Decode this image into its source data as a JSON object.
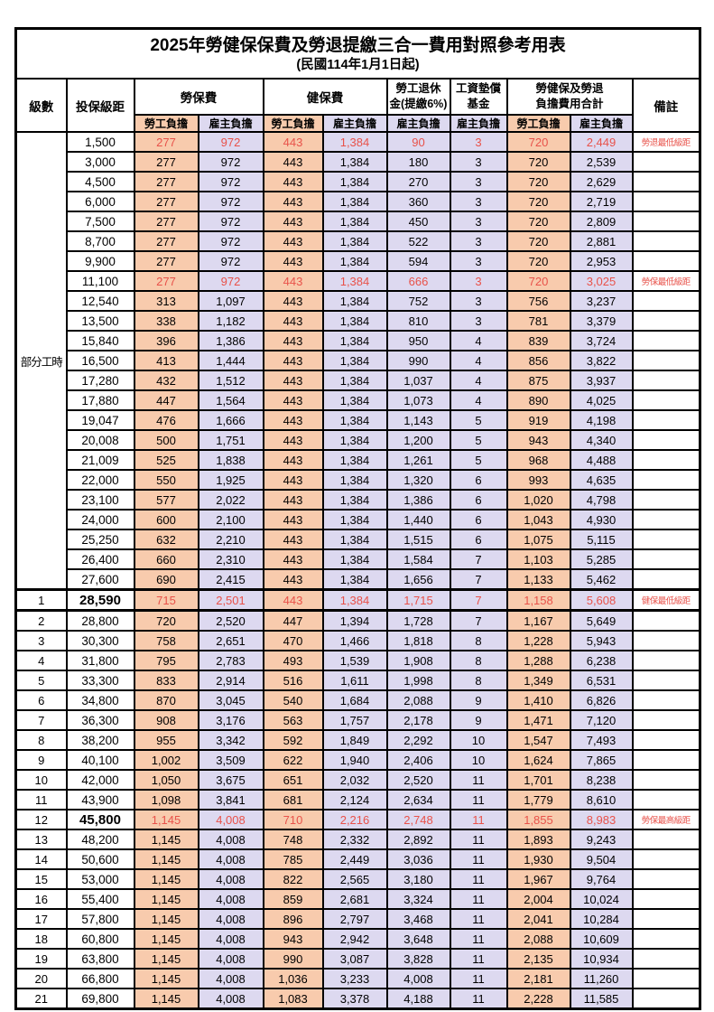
{
  "title": "2025年勞健保保費及勞退提繳三合一費用對照參考用表",
  "subtitle": "(民國114年1月1日起)",
  "columns": {
    "level": "級數",
    "bracket": "投保級距",
    "labor_group": "勞保費",
    "health_group": "健保費",
    "pension_line1": "勞工退休",
    "pension_line2": "金(提繳6%)",
    "wagefund_line1": "工資墊償",
    "wagefund_line2": "基金",
    "total_line1": "勞健保及勞退",
    "total_line2": "負擔費用合計",
    "remark": "備註",
    "employee_share": "勞工負擔",
    "employer_share": "雇主負擔"
  },
  "part_time_label": "部分工時",
  "colors": {
    "employee_bg": "#F8CBAD",
    "employer_bg": "#DDD9F0",
    "highlight_red": "#E8524A"
  },
  "rows": [
    {
      "level": "",
      "bracket": "1,500",
      "values": [
        "277",
        "972",
        "443",
        "1,384",
        "90",
        "3",
        "720",
        "2,449"
      ],
      "remark": "勞退最低級距",
      "red": true,
      "bold": false
    },
    {
      "level": "",
      "bracket": "3,000",
      "values": [
        "277",
        "972",
        "443",
        "1,384",
        "180",
        "3",
        "720",
        "2,539"
      ],
      "remark": "",
      "red": false,
      "bold": false
    },
    {
      "level": "",
      "bracket": "4,500",
      "values": [
        "277",
        "972",
        "443",
        "1,384",
        "270",
        "3",
        "720",
        "2,629"
      ],
      "remark": "",
      "red": false,
      "bold": false
    },
    {
      "level": "",
      "bracket": "6,000",
      "values": [
        "277",
        "972",
        "443",
        "1,384",
        "360",
        "3",
        "720",
        "2,719"
      ],
      "remark": "",
      "red": false,
      "bold": false
    },
    {
      "level": "",
      "bracket": "7,500",
      "values": [
        "277",
        "972",
        "443",
        "1,384",
        "450",
        "3",
        "720",
        "2,809"
      ],
      "remark": "",
      "red": false,
      "bold": false
    },
    {
      "level": "",
      "bracket": "8,700",
      "values": [
        "277",
        "972",
        "443",
        "1,384",
        "522",
        "3",
        "720",
        "2,881"
      ],
      "remark": "",
      "red": false,
      "bold": false
    },
    {
      "level": "",
      "bracket": "9,900",
      "values": [
        "277",
        "972",
        "443",
        "1,384",
        "594",
        "3",
        "720",
        "2,953"
      ],
      "remark": "",
      "red": false,
      "bold": false
    },
    {
      "level": "",
      "bracket": "11,100",
      "values": [
        "277",
        "972",
        "443",
        "1,384",
        "666",
        "3",
        "720",
        "3,025"
      ],
      "remark": "勞保最低級距",
      "red": true,
      "bold": false
    },
    {
      "level": "",
      "bracket": "12,540",
      "values": [
        "313",
        "1,097",
        "443",
        "1,384",
        "752",
        "3",
        "756",
        "3,237"
      ],
      "remark": "",
      "red": false,
      "bold": false
    },
    {
      "level": "",
      "bracket": "13,500",
      "values": [
        "338",
        "1,182",
        "443",
        "1,384",
        "810",
        "3",
        "781",
        "3,379"
      ],
      "remark": "",
      "red": false,
      "bold": false
    },
    {
      "level": "",
      "bracket": "15,840",
      "values": [
        "396",
        "1,386",
        "443",
        "1,384",
        "950",
        "4",
        "839",
        "3,724"
      ],
      "remark": "",
      "red": false,
      "bold": false
    },
    {
      "level": "",
      "bracket": "16,500",
      "values": [
        "413",
        "1,444",
        "443",
        "1,384",
        "990",
        "4",
        "856",
        "3,822"
      ],
      "remark": "",
      "red": false,
      "bold": false
    },
    {
      "level": "",
      "bracket": "17,280",
      "values": [
        "432",
        "1,512",
        "443",
        "1,384",
        "1,037",
        "4",
        "875",
        "3,937"
      ],
      "remark": "",
      "red": false,
      "bold": false
    },
    {
      "level": "",
      "bracket": "17,880",
      "values": [
        "447",
        "1,564",
        "443",
        "1,384",
        "1,073",
        "4",
        "890",
        "4,025"
      ],
      "remark": "",
      "red": false,
      "bold": false
    },
    {
      "level": "",
      "bracket": "19,047",
      "values": [
        "476",
        "1,666",
        "443",
        "1,384",
        "1,143",
        "5",
        "919",
        "4,198"
      ],
      "remark": "",
      "red": false,
      "bold": false
    },
    {
      "level": "",
      "bracket": "20,008",
      "values": [
        "500",
        "1,751",
        "443",
        "1,384",
        "1,200",
        "5",
        "943",
        "4,340"
      ],
      "remark": "",
      "red": false,
      "bold": false
    },
    {
      "level": "",
      "bracket": "21,009",
      "values": [
        "525",
        "1,838",
        "443",
        "1,384",
        "1,261",
        "5",
        "968",
        "4,488"
      ],
      "remark": "",
      "red": false,
      "bold": false
    },
    {
      "level": "",
      "bracket": "22,000",
      "values": [
        "550",
        "1,925",
        "443",
        "1,384",
        "1,320",
        "6",
        "993",
        "4,635"
      ],
      "remark": "",
      "red": false,
      "bold": false
    },
    {
      "level": "",
      "bracket": "23,100",
      "values": [
        "577",
        "2,022",
        "443",
        "1,384",
        "1,386",
        "6",
        "1,020",
        "4,798"
      ],
      "remark": "",
      "red": false,
      "bold": false
    },
    {
      "level": "",
      "bracket": "24,000",
      "values": [
        "600",
        "2,100",
        "443",
        "1,384",
        "1,440",
        "6",
        "1,043",
        "4,930"
      ],
      "remark": "",
      "red": false,
      "bold": false
    },
    {
      "level": "",
      "bracket": "25,250",
      "values": [
        "632",
        "2,210",
        "443",
        "1,384",
        "1,515",
        "6",
        "1,075",
        "5,115"
      ],
      "remark": "",
      "red": false,
      "bold": false
    },
    {
      "level": "",
      "bracket": "26,400",
      "values": [
        "660",
        "2,310",
        "443",
        "1,384",
        "1,584",
        "7",
        "1,103",
        "5,285"
      ],
      "remark": "",
      "red": false,
      "bold": false
    },
    {
      "level": "",
      "bracket": "27,600",
      "values": [
        "690",
        "2,415",
        "443",
        "1,384",
        "1,656",
        "7",
        "1,133",
        "5,462"
      ],
      "remark": "",
      "red": false,
      "bold": false
    },
    {
      "level": "1",
      "bracket": "28,590",
      "values": [
        "715",
        "2,501",
        "443",
        "1,384",
        "1,715",
        "7",
        "1,158",
        "5,608"
      ],
      "remark": "健保最低級距",
      "red": true,
      "bold": true
    },
    {
      "level": "2",
      "bracket": "28,800",
      "values": [
        "720",
        "2,520",
        "447",
        "1,394",
        "1,728",
        "7",
        "1,167",
        "5,649"
      ],
      "remark": "",
      "red": false,
      "bold": false
    },
    {
      "level": "3",
      "bracket": "30,300",
      "values": [
        "758",
        "2,651",
        "470",
        "1,466",
        "1,818",
        "8",
        "1,228",
        "5,943"
      ],
      "remark": "",
      "red": false,
      "bold": false
    },
    {
      "level": "4",
      "bracket": "31,800",
      "values": [
        "795",
        "2,783",
        "493",
        "1,539",
        "1,908",
        "8",
        "1,288",
        "6,238"
      ],
      "remark": "",
      "red": false,
      "bold": false
    },
    {
      "level": "5",
      "bracket": "33,300",
      "values": [
        "833",
        "2,914",
        "516",
        "1,611",
        "1,998",
        "8",
        "1,349",
        "6,531"
      ],
      "remark": "",
      "red": false,
      "bold": false
    },
    {
      "level": "6",
      "bracket": "34,800",
      "values": [
        "870",
        "3,045",
        "540",
        "1,684",
        "2,088",
        "9",
        "1,410",
        "6,826"
      ],
      "remark": "",
      "red": false,
      "bold": false
    },
    {
      "level": "7",
      "bracket": "36,300",
      "values": [
        "908",
        "3,176",
        "563",
        "1,757",
        "2,178",
        "9",
        "1,471",
        "7,120"
      ],
      "remark": "",
      "red": false,
      "bold": false
    },
    {
      "level": "8",
      "bracket": "38,200",
      "values": [
        "955",
        "3,342",
        "592",
        "1,849",
        "2,292",
        "10",
        "1,547",
        "7,493"
      ],
      "remark": "",
      "red": false,
      "bold": false
    },
    {
      "level": "9",
      "bracket": "40,100",
      "values": [
        "1,002",
        "3,509",
        "622",
        "1,940",
        "2,406",
        "10",
        "1,624",
        "7,865"
      ],
      "remark": "",
      "red": false,
      "bold": false
    },
    {
      "level": "10",
      "bracket": "42,000",
      "values": [
        "1,050",
        "3,675",
        "651",
        "2,032",
        "2,520",
        "11",
        "1,701",
        "8,238"
      ],
      "remark": "",
      "red": false,
      "bold": false
    },
    {
      "level": "11",
      "bracket": "43,900",
      "values": [
        "1,098",
        "3,841",
        "681",
        "2,124",
        "2,634",
        "11",
        "1,779",
        "8,610"
      ],
      "remark": "",
      "red": false,
      "bold": false
    },
    {
      "level": "12",
      "bracket": "45,800",
      "values": [
        "1,145",
        "4,008",
        "710",
        "2,216",
        "2,748",
        "11",
        "1,855",
        "8,983"
      ],
      "remark": "勞保最高級距",
      "red": true,
      "bold": true
    },
    {
      "level": "13",
      "bracket": "48,200",
      "values": [
        "1,145",
        "4,008",
        "748",
        "2,332",
        "2,892",
        "11",
        "1,893",
        "9,243"
      ],
      "remark": "",
      "red": false,
      "bold": false
    },
    {
      "level": "14",
      "bracket": "50,600",
      "values": [
        "1,145",
        "4,008",
        "785",
        "2,449",
        "3,036",
        "11",
        "1,930",
        "9,504"
      ],
      "remark": "",
      "red": false,
      "bold": false
    },
    {
      "level": "15",
      "bracket": "53,000",
      "values": [
        "1,145",
        "4,008",
        "822",
        "2,565",
        "3,180",
        "11",
        "1,967",
        "9,764"
      ],
      "remark": "",
      "red": false,
      "bold": false
    },
    {
      "level": "16",
      "bracket": "55,400",
      "values": [
        "1,145",
        "4,008",
        "859",
        "2,681",
        "3,324",
        "11",
        "2,004",
        "10,024"
      ],
      "remark": "",
      "red": false,
      "bold": false
    },
    {
      "level": "17",
      "bracket": "57,800",
      "values": [
        "1,145",
        "4,008",
        "896",
        "2,797",
        "3,468",
        "11",
        "2,041",
        "10,284"
      ],
      "remark": "",
      "red": false,
      "bold": false
    },
    {
      "level": "18",
      "bracket": "60,800",
      "values": [
        "1,145",
        "4,008",
        "943",
        "2,942",
        "3,648",
        "11",
        "2,088",
        "10,609"
      ],
      "remark": "",
      "red": false,
      "bold": false
    },
    {
      "level": "19",
      "bracket": "63,800",
      "values": [
        "1,145",
        "4,008",
        "990",
        "3,087",
        "3,828",
        "11",
        "2,135",
        "10,934"
      ],
      "remark": "",
      "red": false,
      "bold": false
    },
    {
      "level": "20",
      "bracket": "66,800",
      "values": [
        "1,145",
        "4,008",
        "1,036",
        "3,233",
        "4,008",
        "11",
        "2,181",
        "11,260"
      ],
      "remark": "",
      "red": false,
      "bold": false
    },
    {
      "level": "21",
      "bracket": "69,800",
      "values": [
        "1,145",
        "4,008",
        "1,083",
        "3,378",
        "4,188",
        "11",
        "2,228",
        "11,585"
      ],
      "remark": "",
      "red": false,
      "bold": false
    }
  ]
}
